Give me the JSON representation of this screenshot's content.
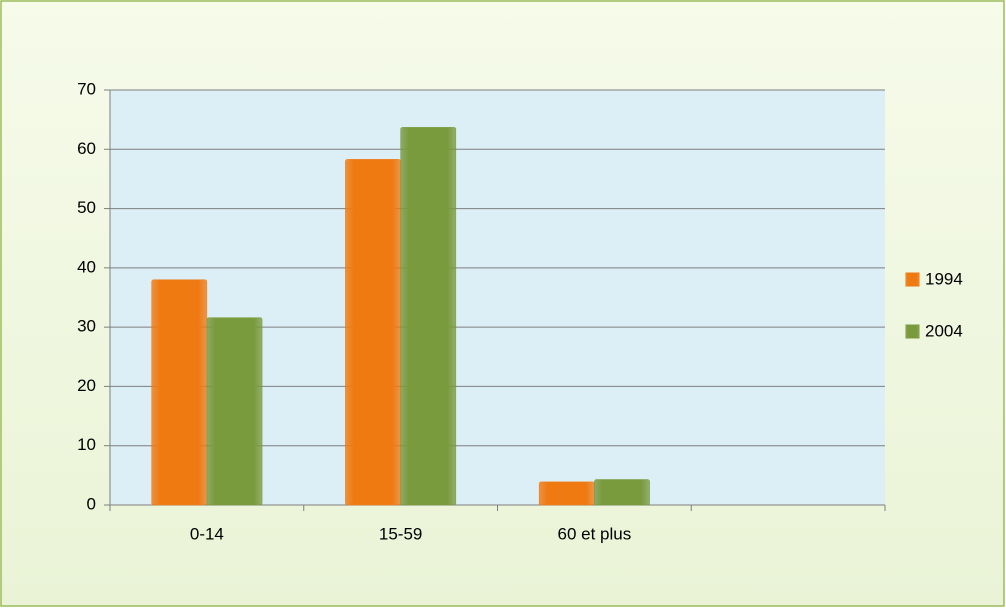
{
  "chart_data": {
    "type": "bar",
    "categories": [
      "0-14",
      "15-59",
      "60 et plus",
      null
    ],
    "series": [
      {
        "name": "1994",
        "color": "#f07a12",
        "values": [
          38,
          58.3,
          3.9,
          null
        ]
      },
      {
        "name": "2004",
        "color": "#7a9a3e",
        "values": [
          31.6,
          63.7,
          4.3,
          null
        ]
      }
    ],
    "ylim": [
      0,
      70
    ],
    "yticks": [
      0,
      10,
      20,
      30,
      40,
      50,
      60,
      70
    ],
    "grid": true,
    "legend": "right"
  }
}
